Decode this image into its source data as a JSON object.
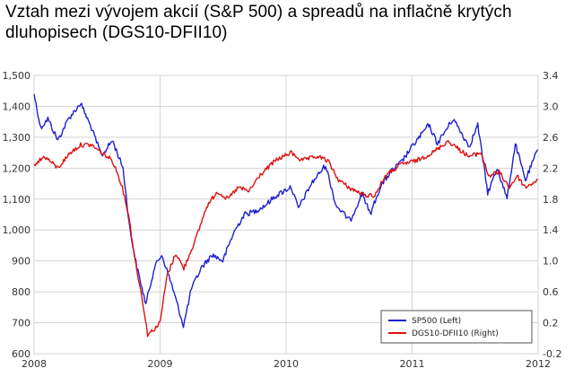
{
  "chart_data": {
    "type": "line",
    "title": "Vztah mezi vývojem akcií (S&P 500) a spreadů na inflačně krytých dluhopisech (DGS10-DFII10)",
    "xlabel": "",
    "ylabel_left": "",
    "ylabel_right": "",
    "x_ticks": [
      "2008",
      "2009",
      "2010",
      "2011",
      "2012"
    ],
    "x_range": [
      "2008-01-01",
      "2012-01-01"
    ],
    "y_left_ticks": [
      "1,500",
      "1,400",
      "1,300",
      "1,200",
      "1,100",
      "1,000",
      "900",
      "800",
      "700",
      "600"
    ],
    "y_left_range": [
      600,
      1500
    ],
    "y_right_ticks": [
      "3.4",
      "3.0",
      "2.6",
      "2.2",
      "1.8",
      "1.4",
      "1.0",
      "0.6",
      "0.2",
      "-0.2"
    ],
    "y_right_range": [
      -0.2,
      3.4
    ],
    "grid": true,
    "legend_position": "bottom-right",
    "series": [
      {
        "name": "SP500 (Left)",
        "axis": "left",
        "color": "#1f1fd0",
        "points": [
          [
            "2008-01-01",
            1440
          ],
          [
            "2008-01-20",
            1330
          ],
          [
            "2008-02-10",
            1360
          ],
          [
            "2008-03-10",
            1290
          ],
          [
            "2008-04-10",
            1360
          ],
          [
            "2008-05-15",
            1410
          ],
          [
            "2008-06-15",
            1330
          ],
          [
            "2008-07-15",
            1240
          ],
          [
            "2008-08-15",
            1290
          ],
          [
            "2008-09-15",
            1200
          ],
          [
            "2008-10-05",
            1000
          ],
          [
            "2008-10-25",
            880
          ],
          [
            "2008-11-20",
            760
          ],
          [
            "2008-12-15",
            880
          ],
          [
            "2009-01-05",
            920
          ],
          [
            "2009-02-01",
            830
          ],
          [
            "2009-03-09",
            690
          ],
          [
            "2009-04-01",
            810
          ],
          [
            "2009-05-01",
            880
          ],
          [
            "2009-06-01",
            920
          ],
          [
            "2009-07-01",
            900
          ],
          [
            "2009-08-01",
            990
          ],
          [
            "2009-09-01",
            1050
          ],
          [
            "2009-10-01",
            1060
          ],
          [
            "2009-11-01",
            1080
          ],
          [
            "2009-12-01",
            1110
          ],
          [
            "2010-01-15",
            1140
          ],
          [
            "2010-02-05",
            1070
          ],
          [
            "2010-03-15",
            1150
          ],
          [
            "2010-04-25",
            1210
          ],
          [
            "2010-05-25",
            1080
          ],
          [
            "2010-07-05",
            1030
          ],
          [
            "2010-08-10",
            1120
          ],
          [
            "2010-09-01",
            1050
          ],
          [
            "2010-10-01",
            1140
          ],
          [
            "2010-11-01",
            1190
          ],
          [
            "2010-12-01",
            1220
          ],
          [
            "2011-01-01",
            1270
          ],
          [
            "2011-02-18",
            1340
          ],
          [
            "2011-03-15",
            1280
          ],
          [
            "2011-04-30",
            1360
          ],
          [
            "2011-06-15",
            1270
          ],
          [
            "2011-07-10",
            1340
          ],
          [
            "2011-08-08",
            1120
          ],
          [
            "2011-09-05",
            1200
          ],
          [
            "2011-10-03",
            1100
          ],
          [
            "2011-10-27",
            1280
          ],
          [
            "2011-11-25",
            1160
          ],
          [
            "2011-12-31",
            1260
          ]
        ]
      },
      {
        "name": "DGS10-DFII10 (Right)",
        "axis": "right",
        "color": "#e01010",
        "points": [
          [
            "2008-01-01",
            2.25
          ],
          [
            "2008-02-01",
            2.35
          ],
          [
            "2008-03-10",
            2.2
          ],
          [
            "2008-04-15",
            2.4
          ],
          [
            "2008-05-15",
            2.5
          ],
          [
            "2008-06-15",
            2.5
          ],
          [
            "2008-07-15",
            2.4
          ],
          [
            "2008-08-15",
            2.3
          ],
          [
            "2008-09-10",
            2.0
          ],
          [
            "2008-10-01",
            1.6
          ],
          [
            "2008-10-20",
            1.0
          ],
          [
            "2008-11-10",
            0.5
          ],
          [
            "2008-11-25",
            0.05
          ],
          [
            "2008-12-10",
            0.1
          ],
          [
            "2008-12-31",
            0.2
          ],
          [
            "2009-01-20",
            0.8
          ],
          [
            "2009-02-15",
            1.1
          ],
          [
            "2009-03-10",
            0.9
          ],
          [
            "2009-04-15",
            1.3
          ],
          [
            "2009-05-15",
            1.7
          ],
          [
            "2009-06-15",
            1.9
          ],
          [
            "2009-07-15",
            1.8
          ],
          [
            "2009-08-15",
            1.95
          ],
          [
            "2009-09-15",
            1.9
          ],
          [
            "2009-10-15",
            2.1
          ],
          [
            "2009-12-01",
            2.3
          ],
          [
            "2010-01-15",
            2.4
          ],
          [
            "2010-02-15",
            2.3
          ],
          [
            "2010-04-01",
            2.35
          ],
          [
            "2010-05-01",
            2.3
          ],
          [
            "2010-06-01",
            2.05
          ],
          [
            "2010-07-01",
            1.95
          ],
          [
            "2010-08-15",
            1.85
          ],
          [
            "2010-09-15",
            1.85
          ],
          [
            "2010-10-15",
            2.1
          ],
          [
            "2010-12-01",
            2.25
          ],
          [
            "2011-01-15",
            2.3
          ],
          [
            "2011-03-01",
            2.4
          ],
          [
            "2011-04-15",
            2.55
          ],
          [
            "2011-05-15",
            2.45
          ],
          [
            "2011-06-15",
            2.35
          ],
          [
            "2011-07-20",
            2.4
          ],
          [
            "2011-08-10",
            2.1
          ],
          [
            "2011-09-10",
            2.15
          ],
          [
            "2011-10-10",
            1.95
          ],
          [
            "2011-11-01",
            2.1
          ],
          [
            "2011-11-25",
            1.95
          ],
          [
            "2011-12-31",
            2.05
          ]
        ]
      }
    ]
  }
}
